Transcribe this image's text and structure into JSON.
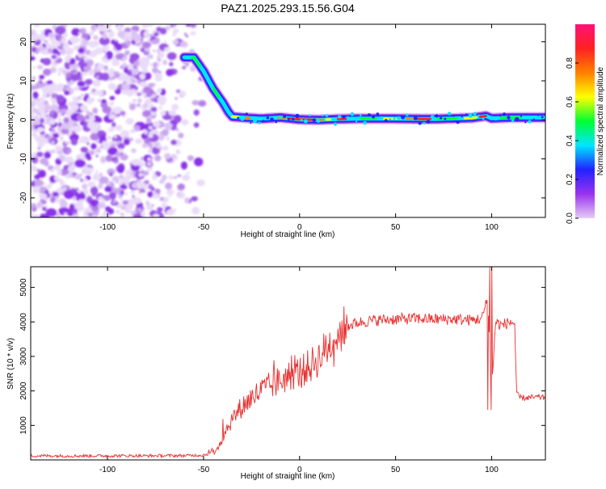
{
  "chart_data": [
    {
      "type": "heatmap",
      "title": "PAZ1.2025.293.15.56.G04",
      "xlabel": "Height of straight line (km)",
      "ylabel": "Frequency (Hz)",
      "xlim": [
        -140,
        128
      ],
      "ylim": [
        -25,
        24.5
      ],
      "x_ticks": [
        -100,
        -50,
        0,
        50,
        100
      ],
      "x_tick_labels": [
        "-100",
        "-50",
        "0",
        "50",
        "100"
      ],
      "y_ticks": [
        -20,
        -10,
        0,
        10,
        20
      ],
      "y_tick_labels": [
        "-20",
        "-10",
        "0",
        "10",
        "20"
      ],
      "ridge": {
        "x": [
          -60,
          -55,
          -50,
          -45,
          -40,
          -37,
          -35,
          -30,
          -20,
          -10,
          0,
          10,
          20,
          30,
          50,
          70,
          90,
          97,
          100,
          110,
          128
        ],
        "y": [
          16,
          16,
          12.5,
          8,
          4.5,
          2,
          0.8,
          0.6,
          0.3,
          0.6,
          0.1,
          0,
          0.2,
          0.3,
          0.3,
          0.2,
          0.5,
          1,
          0.4,
          0.6,
          0.6
        ]
      },
      "noise_region_x": [
        -140,
        -55
      ],
      "colorbar": {
        "label": "Normalized spectral amplitude",
        "range": [
          0,
          1
        ],
        "ticks": [
          0.0,
          0.2,
          0.4,
          0.6,
          0.8
        ],
        "tick_labels": [
          "0.0",
          "0.2",
          "0.4",
          "0.6",
          "0.8"
        ],
        "colors": [
          "#e6ccf5",
          "#9933ee",
          "#2222ff",
          "#00e5ff",
          "#00ff33",
          "#ffff00",
          "#ff8000",
          "#ff2222",
          "#ff1177"
        ]
      }
    },
    {
      "type": "line",
      "xlabel": "Height of straight line (km)",
      "ylabel": "SNR (10 * v/v)",
      "xlim": [
        -140,
        128
      ],
      "ylim": [
        0,
        5600
      ],
      "x_ticks": [
        -100,
        -50,
        0,
        50,
        100
      ],
      "x_tick_labels": [
        "-100",
        "-50",
        "0",
        "50",
        "100"
      ],
      "y_ticks": [
        1000,
        2000,
        3000,
        4000,
        5000
      ],
      "y_tick_labels": [
        "1000",
        "2000",
        "3000",
        "4000",
        "5000"
      ],
      "line_color": "#e83030",
      "series": [
        {
          "name": "SNR",
          "x": [
            -140,
            -120,
            -100,
            -80,
            -60,
            -50,
            -45,
            -42,
            -40,
            -38,
            -35,
            -30,
            -25,
            -20,
            -15,
            -10,
            -5,
            0,
            5,
            10,
            15,
            20,
            25,
            30,
            35,
            40,
            50,
            60,
            70,
            80,
            90,
            95,
            98,
            100,
            102,
            105,
            110,
            112,
            113,
            115,
            120,
            125,
            128
          ],
          "values": [
            120,
            115,
            120,
            118,
            125,
            140,
            250,
            420,
            650,
            900,
            1200,
            1550,
            1800,
            2000,
            2150,
            2300,
            2450,
            2550,
            2700,
            2950,
            3300,
            3650,
            3880,
            3980,
            4020,
            4050,
            4080,
            4100,
            4080,
            4080,
            4050,
            4100,
            4700,
            1900,
            4000,
            3900,
            4000,
            3950,
            1900,
            1800,
            1800,
            1820,
            1800
          ]
        }
      ]
    }
  ]
}
